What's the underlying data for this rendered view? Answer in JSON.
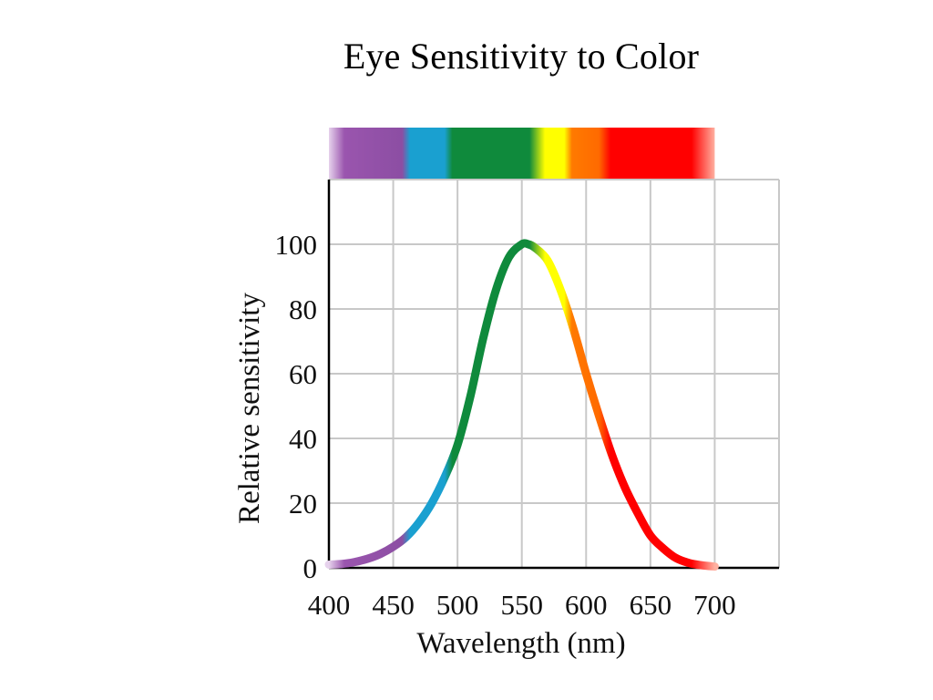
{
  "slide": {
    "title": "Eye Sensitivity to Color"
  },
  "chart_data": {
    "type": "line",
    "title": "Eye Sensitivity to Color",
    "xlabel": "Wavelength (nm)",
    "ylabel": "Relative sensitivity",
    "xlim": [
      400,
      750
    ],
    "ylim": [
      0,
      120
    ],
    "x_ticks": [
      400,
      450,
      500,
      550,
      600,
      650,
      700
    ],
    "y_ticks": [
      0,
      20,
      40,
      60,
      80,
      100
    ],
    "x_tick_labels": [
      "400",
      "450",
      "500",
      "550",
      "600",
      "650",
      "700"
    ],
    "y_tick_labels": [
      "0",
      "20",
      "40",
      "60",
      "80",
      "100"
    ],
    "grid": true,
    "spectrum_band": true,
    "series": [
      {
        "x": [
          400,
          410,
          420,
          430,
          440,
          450,
          460,
          470,
          480,
          490,
          500,
          510,
          520,
          530,
          540,
          550,
          555,
          560,
          570,
          580,
          590,
          600,
          610,
          620,
          630,
          640,
          650,
          660,
          670,
          680,
          690,
          700
        ],
        "values": [
          1,
          1.2,
          1.8,
          2.8,
          4.3,
          6.5,
          9.5,
          14,
          20,
          28,
          38,
          53,
          71,
          86,
          96,
          100,
          100,
          99,
          95,
          86,
          74,
          60,
          47,
          35,
          25,
          17,
          10,
          6,
          3,
          1.5,
          0.8,
          0.4
        ]
      }
    ],
    "colors": {
      "violet": "#8c4ea3",
      "blue": "#1aa0d0",
      "green": "#0f8a3c",
      "yellow": "#ffff00",
      "orange": "#ff7a00",
      "red": "#ff0000",
      "grid": "#c8c8c8",
      "axis": "#000000"
    }
  }
}
